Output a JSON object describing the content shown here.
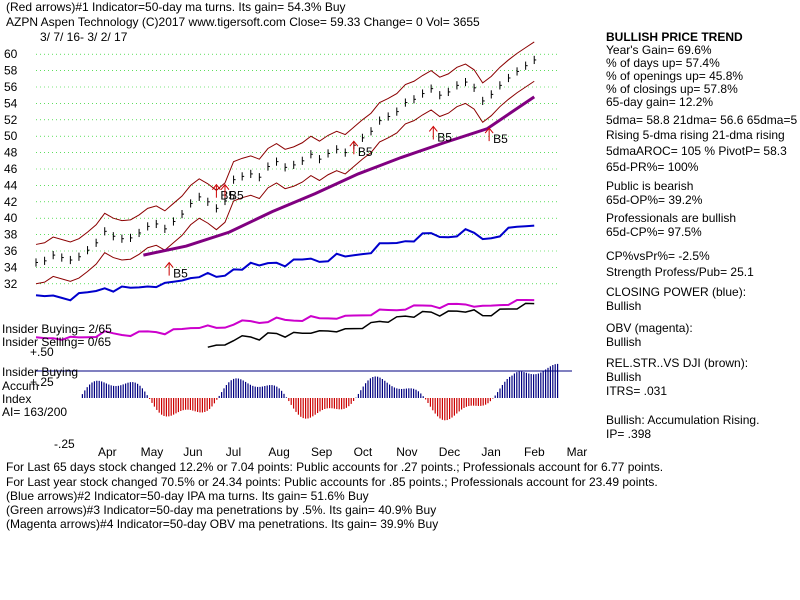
{
  "header": {
    "line1": "(Red arrows)#1 Indicator=50-day ma turns. Its gain= 54.3% Buy",
    "line2": "AZPN   Aspen Technology  (C)2017 www.tigersoft.com     Close=  59.33  Change= 0 Vol= 3655",
    "date_range": "3/ 7/ 16-  3/ 2/ 17"
  },
  "colors": {
    "price_bars": "#000000",
    "ma_line": "#800080",
    "bands": "#8b0000",
    "closing_power": "#0000cc",
    "obv": "#cc00cc",
    "relstr": "#000000",
    "arrows": "#cc0000",
    "accum_pos": "#000080",
    "accum_neg": "#cc0000"
  },
  "right_panel": [
    {
      "text": "BULLISH PRICE TREND"
    },
    {
      "text": "   Year's Gain= 69.6%"
    },
    {
      "text": "      % of days up= 57.4%"
    },
    {
      "text": "      % of openings up= 45.8%"
    },
    {
      "text": "      % of closings up= 57.8%"
    },
    {
      "text": "   65-day gain= 12.2%"
    },
    {
      "text": "5dma= 58.8 21dma= 56.6 65dma=5"
    },
    {
      "text": "Rising 5-dma  rising 21-dma  rising"
    },
    {
      "text": "5dmaAROC= 105 %  PivotP= 58.3"
    },
    {
      "text": "    65d-PR%= 100%"
    },
    {
      "text": "Public is bearish"
    },
    {
      "text": "    65d-OP%= 39.2%"
    },
    {
      "text": "Professionals are bullish"
    },
    {
      "text": "    65d-CP%= 97.5%"
    },
    {
      "text": "CP%vsPr%= -2.5%"
    },
    {
      "text": "Strength Profess/Pub= 25.1"
    },
    {
      "text": "CLOSING POWER (blue):"
    },
    {
      "text": "Bullish"
    },
    {
      "text": "OBV (magenta):"
    },
    {
      "text": "Bullish"
    },
    {
      "text": "REL.STR..VS DJI (brown):"
    },
    {
      "text": "Bullish"
    },
    {
      "text": "ITRS= .031"
    },
    {
      "text": "Bullish: Accumulation Rising."
    },
    {
      "text": "      IP=   .398"
    }
  ],
  "left_labels": {
    "insider_buying_count": "Insider Buying= 2/65",
    "insider_selling_count": "Insider Selling= 0/65",
    "plus50": "+.50",
    "insider_buying": "Insider Buying",
    "accum": "Accum",
    "plus25": "+.25",
    "index": "Index",
    "ai": "AI= 163/200",
    "minus25": "-.25"
  },
  "footer": [
    {
      "text": "For Last 65 days stock changed  12.2% or  7.04 points:  Public accounts for  .27 points.;  Professionals account for  6.77 points."
    },
    {
      "text": "For Last year stock changed  70.5% or  24.34 points:  Public accounts for  .85 points.;  Professionals account for  23.49 points."
    },
    {
      "text": "(Blue arrows)#2 Indicator=50-day IPA ma turns. Its gain= 51.6% Buy"
    },
    {
      "text": "(Green arrows)#3 Indicator=50-day ma penetrations by .5%. Its gain= 40.9% Buy"
    },
    {
      "text": "(Magenta arrows)#4 Indicator=50-day OBV ma penetrations. Its gain= 39.9% Buy"
    }
  ],
  "chart_data": {
    "type": "line",
    "y_ticks": [
      60,
      58,
      56,
      54,
      52,
      50,
      48,
      46,
      44,
      42,
      40,
      38,
      36,
      34,
      32
    ],
    "x_categories": [
      "Apr",
      "May",
      "Jun",
      "Jul",
      "Aug",
      "Sep",
      "Oct",
      "Nov",
      "Dec",
      "Jan",
      "Feb",
      "Mar"
    ],
    "ylim": [
      31,
      61
    ],
    "price_close": [
      [
        0,
        34.6
      ],
      [
        4,
        34.8
      ],
      [
        8,
        35.5
      ],
      [
        12,
        35.2
      ],
      [
        16,
        34.9
      ],
      [
        20,
        35.3
      ],
      [
        24,
        36.1
      ],
      [
        28,
        37.0
      ],
      [
        32,
        38.4
      ],
      [
        36,
        37.8
      ],
      [
        40,
        37.5
      ],
      [
        44,
        37.6
      ],
      [
        48,
        38.2
      ],
      [
        52,
        39.0
      ],
      [
        56,
        39.3
      ],
      [
        60,
        38.7
      ],
      [
        64,
        39.6
      ],
      [
        68,
        40.5
      ],
      [
        72,
        41.8
      ],
      [
        76,
        42.6
      ],
      [
        80,
        42.0
      ],
      [
        84,
        41.2
      ],
      [
        88,
        42.1
      ],
      [
        92,
        44.7
      ],
      [
        96,
        45.1
      ],
      [
        100,
        45.4
      ],
      [
        104,
        45.0
      ],
      [
        108,
        46.3
      ],
      [
        112,
        46.9
      ],
      [
        116,
        46.2
      ],
      [
        120,
        46.5
      ],
      [
        124,
        47.0
      ],
      [
        128,
        47.8
      ],
      [
        132,
        47.2
      ],
      [
        136,
        47.9
      ],
      [
        140,
        48.4
      ],
      [
        144,
        48.0
      ],
      [
        148,
        48.9
      ],
      [
        152,
        49.8
      ],
      [
        156,
        50.6
      ],
      [
        160,
        51.9
      ],
      [
        164,
        52.4
      ],
      [
        168,
        53.0
      ],
      [
        172,
        54.1
      ],
      [
        176,
        54.5
      ],
      [
        180,
        55.2
      ],
      [
        184,
        55.8
      ],
      [
        188,
        55.0
      ],
      [
        192,
        55.4
      ],
      [
        196,
        56.2
      ],
      [
        200,
        56.6
      ],
      [
        204,
        55.9
      ],
      [
        208,
        54.3
      ],
      [
        212,
        55.1
      ],
      [
        216,
        56.2
      ],
      [
        220,
        57.1
      ],
      [
        224,
        57.9
      ],
      [
        228,
        58.6
      ],
      [
        232,
        59.3
      ]
    ],
    "ma50": [
      [
        50,
        35.5
      ],
      [
        70,
        36.6
      ],
      [
        90,
        38.3
      ],
      [
        110,
        40.8
      ],
      [
        130,
        43.0
      ],
      [
        150,
        45.4
      ],
      [
        170,
        47.4
      ],
      [
        190,
        49.2
      ],
      [
        210,
        50.9
      ],
      [
        232,
        54.8
      ]
    ],
    "buy_signals": [
      {
        "label": "B5",
        "x": 84,
        "y": 42.5
      },
      {
        "label": "B5",
        "x": 88,
        "y": 42.5
      },
      {
        "label": "B5",
        "x": 148,
        "y": 47.8
      },
      {
        "label": "B5",
        "x": 185,
        "y": 49.6
      },
      {
        "label": "B5",
        "x": 211,
        "y": 49.4
      },
      {
        "label": "B5",
        "x": 62,
        "y": 33.0
      }
    ],
    "title": "AZPN   Aspen Technology"
  }
}
